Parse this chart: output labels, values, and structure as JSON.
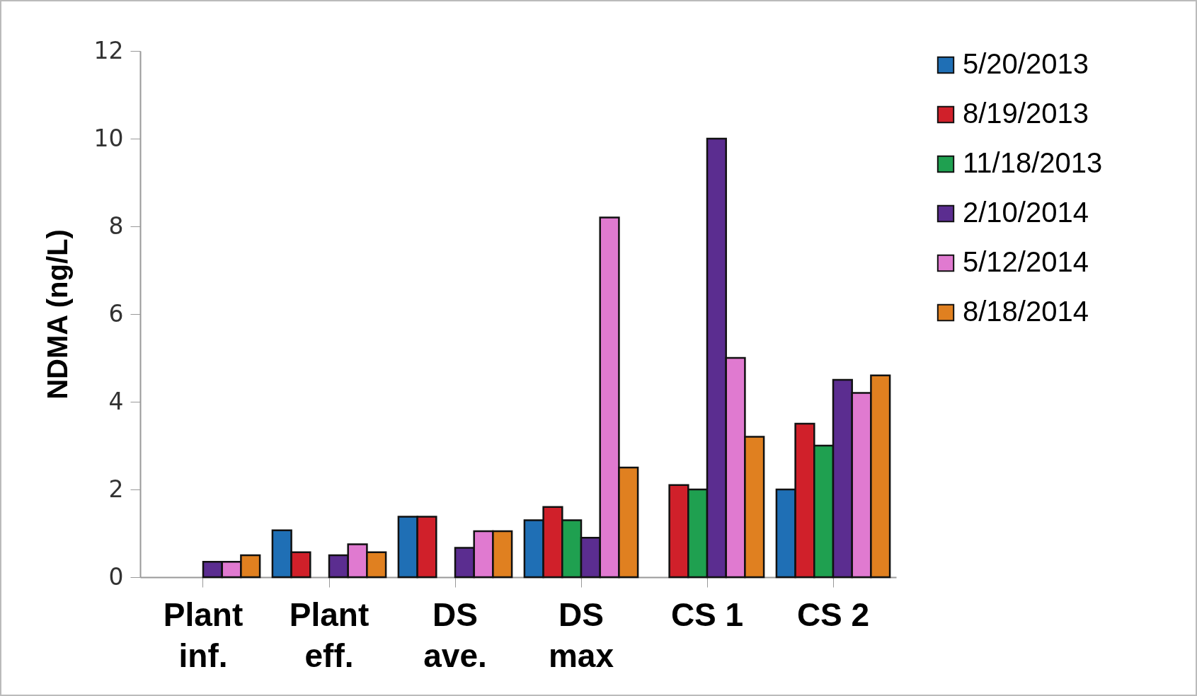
{
  "chart_data": {
    "type": "bar",
    "ylabel": "NDMA (ng/L)",
    "categories": [
      "Plant\ninf.",
      "Plant\neff.",
      "DS\nave.",
      "DS\nmax",
      "CS 1",
      "CS 2"
    ],
    "series": [
      {
        "name": "5/20/2013",
        "color": "#1f6fb5",
        "values": [
          null,
          1.07,
          1.38,
          1.3,
          null,
          2.0
        ]
      },
      {
        "name": "8/19/2013",
        "color": "#d0202a",
        "values": [
          null,
          0.57,
          1.38,
          1.6,
          2.1,
          3.5
        ]
      },
      {
        "name": "11/18/2013",
        "color": "#1fa050",
        "values": [
          null,
          null,
          null,
          1.3,
          2.0,
          3.0
        ]
      },
      {
        "name": "2/10/2014",
        "color": "#5b2d90",
        "values": [
          0.35,
          0.5,
          0.67,
          0.9,
          10.0,
          4.5
        ]
      },
      {
        "name": "5/12/2014",
        "color": "#e07ad0",
        "values": [
          0.35,
          0.75,
          1.05,
          8.2,
          5.0,
          4.2
        ]
      },
      {
        "name": "8/18/2014",
        "color": "#e08020",
        "values": [
          0.5,
          0.57,
          1.05,
          2.5,
          3.2,
          4.6
        ]
      }
    ],
    "ylim": [
      0,
      12
    ],
    "yticks": [
      0,
      2,
      4,
      6,
      8,
      10,
      12
    ],
    "grid": false,
    "legend": "right"
  }
}
